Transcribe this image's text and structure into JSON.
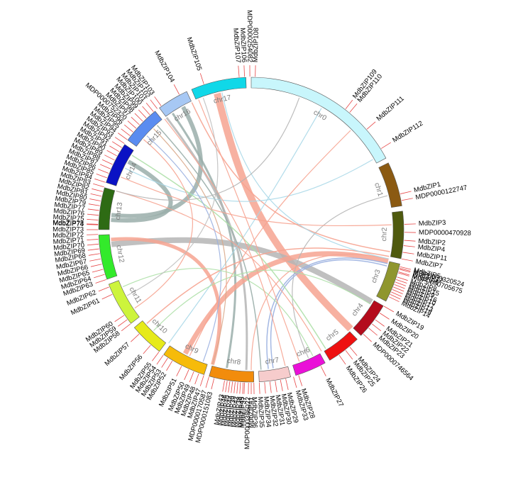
{
  "chart_data": {
    "type": "diagram",
    "chromosomes": [
      {
        "name": "chr0",
        "color": "#c8f6fc",
        "start": 0,
        "end": 62
      },
      {
        "name": "chr1",
        "color": "#8b5a12",
        "start": 64,
        "end": 81
      },
      {
        "name": "chr2",
        "color": "#4f5a0f",
        "start": 83,
        "end": 101
      },
      {
        "name": "chr3",
        "color": "#8f962e",
        "start": 103,
        "end": 118
      },
      {
        "name": "chr4",
        "color": "#b40b1c",
        "start": 120,
        "end": 134
      },
      {
        "name": "chr5",
        "color": "#ee1111",
        "start": 136,
        "end": 149
      },
      {
        "name": "chr6",
        "color": "#ea10d8",
        "start": 151,
        "end": 163
      },
      {
        "name": "chr7",
        "color": "#f6cccc",
        "start": 165,
        "end": 177
      },
      {
        "name": "chr8",
        "color": "#f28c0c",
        "start": 179,
        "end": 196
      },
      {
        "name": "chr9",
        "color": "#f6bb0a",
        "start": 198,
        "end": 215
      },
      {
        "name": "chr10",
        "color": "#e6ea1a",
        "start": 217,
        "end": 230
      },
      {
        "name": "chr11",
        "color": "#cdf43c",
        "start": 232,
        "end": 249
      },
      {
        "name": "chr12",
        "color": "#33ea2b",
        "start": 251,
        "end": 268
      },
      {
        "name": "chr13",
        "color": "#2e6b14",
        "start": 270,
        "end": 286
      },
      {
        "name": "chr14",
        "color": "#0a12c4",
        "start": 288,
        "end": 304
      },
      {
        "name": "chr15",
        "color": "#5a8cf0",
        "start": 306,
        "end": 321
      },
      {
        "name": "chr16",
        "color": "#a7c8f4",
        "start": 323,
        "end": 335
      },
      {
        "name": "chr17",
        "color": "#10d8e8",
        "start": 337,
        "end": 358
      }
    ],
    "genes": [
      {
        "name": "MdbZIP1",
        "pos": 76.5
      },
      {
        "name": "MDP0000122747",
        "pos": 79
      },
      {
        "name": "MdbZIP2",
        "pos": 94
      },
      {
        "name": "MdbZIP3",
        "pos": 88
      },
      {
        "name": "MDP0000470928",
        "pos": 91
      },
      {
        "name": "MdbZIP4",
        "pos": 96
      },
      {
        "name": "MdbZIP5",
        "pos": 104
      },
      {
        "name": "MDP0000320524",
        "pos": 104.6
      },
      {
        "name": "MdbZIP6",
        "pos": 106
      },
      {
        "name": "MDP0000705675",
        "pos": 106.4
      },
      {
        "name": "MdbZIP7",
        "pos": 101
      },
      {
        "name": "MdbZIP8",
        "pos": 108
      },
      {
        "name": "MdbZIP9",
        "pos": 110
      },
      {
        "name": "MdbZIP10",
        "pos": 112
      },
      {
        "name": "MdbZIP11",
        "pos": 98.5
      },
      {
        "name": "MdbZIP12",
        "pos": 105
      },
      {
        "name": "MdbZIP13",
        "pos": 114
      },
      {
        "name": "MdbZIP14",
        "pos": 116
      },
      {
        "name": "MdbZIP15",
        "pos": 109
      },
      {
        "name": "MdbZIP16",
        "pos": 111
      },
      {
        "name": "MdbZIP17",
        "pos": 113
      },
      {
        "name": "MdbZIP18",
        "pos": 115
      },
      {
        "name": "MdbZIP19",
        "pos": 120
      },
      {
        "name": "MdbZIP20",
        "pos": 123
      },
      {
        "name": "MdbZIP21",
        "pos": 126
      },
      {
        "name": "MdbZIP22",
        "pos": 128
      },
      {
        "name": "MdbZIP23",
        "pos": 130
      },
      {
        "name": "MDP0000746564",
        "pos": 133
      },
      {
        "name": "MdbZIP24",
        "pos": 140
      },
      {
        "name": "MdbZIP25",
        "pos": 142
      },
      {
        "name": "MdbZIP26",
        "pos": 145
      },
      {
        "name": "MdbZIP27",
        "pos": 153
      },
      {
        "name": "MdbZIP28",
        "pos": 162
      },
      {
        "name": "MdbZIP29",
        "pos": 167
      },
      {
        "name": "MdbZIP30",
        "pos": 169
      },
      {
        "name": "MdbZIP31",
        "pos": 171
      },
      {
        "name": "MdbZIP32",
        "pos": 173
      },
      {
        "name": "MdbZIP33",
        "pos": 164
      },
      {
        "name": "MdbZIP34",
        "pos": 175
      },
      {
        "name": "MdbZIP35",
        "pos": 177
      },
      {
        "name": "MdbZIP36",
        "pos": 179
      },
      {
        "name": "MDP0000386022",
        "pos": 181
      },
      {
        "name": "MdbZIP37",
        "pos": 182.5
      },
      {
        "name": "MdbZIP38",
        "pos": 184
      },
      {
        "name": "MdbZIP39",
        "pos": 186
      },
      {
        "name": "MdbZIP40",
        "pos": 188
      },
      {
        "name": "MdbZIP41",
        "pos": 180
      },
      {
        "name": "MdbZIP42",
        "pos": 185
      },
      {
        "name": "MdbZIP43",
        "pos": 190
      },
      {
        "name": "MdbZIP44",
        "pos": 187
      },
      {
        "name": "MdbZIP45",
        "pos": 183
      },
      {
        "name": "MdbZIP46",
        "pos": 189
      },
      {
        "name": "MdbZIP47",
        "pos": 198
      },
      {
        "name": "MdbZIP48",
        "pos": 200
      },
      {
        "name": "MdbZIP49",
        "pos": 202
      },
      {
        "name": "MDP0000151083",
        "pos": 194
      },
      {
        "name": "MDP0000170587",
        "pos": 196
      },
      {
        "name": "MdbZIP50",
        "pos": 204
      },
      {
        "name": "MdbZIP51",
        "pos": 207
      },
      {
        "name": "MdbZIP52",
        "pos": 211
      },
      {
        "name": "MdbZIP53",
        "pos": 213
      },
      {
        "name": "MdbZIP54",
        "pos": 215
      },
      {
        "name": "MdbZIP55",
        "pos": 217
      },
      {
        "name": "MdbZIP56",
        "pos": 221
      },
      {
        "name": "MdbZIP57",
        "pos": 227
      },
      {
        "name": "MdbZIP58",
        "pos": 232
      },
      {
        "name": "MdbZIP59",
        "pos": 234
      },
      {
        "name": "MdbZIP60",
        "pos": 236
      },
      {
        "name": "MdbZIP61",
        "pos": 245
      },
      {
        "name": "MdbZIP62",
        "pos": 248
      },
      {
        "name": "MdbZIP63",
        "pos": 251
      },
      {
        "name": "MdbZIP64",
        "pos": 253
      },
      {
        "name": "MdbZIP65",
        "pos": 255
      },
      {
        "name": "MdbZIP66",
        "pos": 257
      },
      {
        "name": "MdbZIP67",
        "pos": 259
      },
      {
        "name": "MdbZIP68",
        "pos": 261
      },
      {
        "name": "MdbZIP69",
        "pos": 262.8
      },
      {
        "name": "MdbZIP70",
        "pos": 264.6
      },
      {
        "name": "MdbZIP71",
        "pos": 266.4
      },
      {
        "name": "MdbZIP72",
        "pos": 268.2
      },
      {
        "name": "MdbZIP73",
        "pos": 270
      },
      {
        "name": "MdbZIP74",
        "pos": 271.8
      },
      {
        "name": "MdbZIP75",
        "pos": 273.6
      },
      {
        "name": "MdbZIP76",
        "pos": 275.4
      },
      {
        "name": "MdbZIP77",
        "pos": 277.2
      },
      {
        "name": "MdbZIP78",
        "pos": 272
      },
      {
        "name": "MdbZIP79",
        "pos": 279
      },
      {
        "name": "MdbZIP80",
        "pos": 280.8
      },
      {
        "name": "MdbZIP81",
        "pos": 282.6
      },
      {
        "name": "MdbZIP82",
        "pos": 284.4
      },
      {
        "name": "MdbZIP83",
        "pos": 286.2
      },
      {
        "name": "MdbZIP84",
        "pos": 288
      },
      {
        "name": "MdbZIP85",
        "pos": 289.8
      },
      {
        "name": "MdbZIP86",
        "pos": 291.6
      },
      {
        "name": "MdbZIP87",
        "pos": 293.4
      },
      {
        "name": "MdbZIP88",
        "pos": 295.2
      },
      {
        "name": "MdbZIP89",
        "pos": 297
      },
      {
        "name": "MdbZIP90",
        "pos": 298.8
      },
      {
        "name": "MdbZIP91",
        "pos": 300.6
      },
      {
        "name": "MdbZIP92",
        "pos": 302.4
      },
      {
        "name": "MdbZIP93",
        "pos": 304.2
      },
      {
        "name": "MdbZIP94",
        "pos": 306
      },
      {
        "name": "MdbZIP95",
        "pos": 307.8
      },
      {
        "name": "MdbZIP96",
        "pos": 309.6
      },
      {
        "name": "MDP0000752320",
        "pos": 311.4
      },
      {
        "name": "MdbZIP97",
        "pos": 313.2
      },
      {
        "name": "MdbZIP98",
        "pos": 315
      },
      {
        "name": "MdbZIP99",
        "pos": 316.8
      },
      {
        "name": "MdbZIP100",
        "pos": 318.6
      },
      {
        "name": "MdbZIP101",
        "pos": 320.4
      },
      {
        "name": "MdbZIP102",
        "pos": 322.2
      },
      {
        "name": "MdbZIP103",
        "pos": 324
      },
      {
        "name": "MdbZIP104",
        "pos": 332
      },
      {
        "name": "MdbZIP105",
        "pos": 342
      },
      {
        "name": "MdbZIP106",
        "pos": 357.5
      },
      {
        "name": "MdbZIP107",
        "pos": 355.5
      },
      {
        "name": "MDP0000254082",
        "pos": 359.5
      },
      {
        "name": "MdbZIP108",
        "pos": 1.5
      },
      {
        "name": "MdbZIP109",
        "pos": 38
      },
      {
        "name": "MdbZIP110",
        "pos": 40
      },
      {
        "name": "MdbZIP111",
        "pos": 49
      },
      {
        "name": "MdbZIP112",
        "pos": 58
      }
    ],
    "links": [
      {
        "from": 346,
        "to": 135,
        "color": "#f6a390",
        "width": 10
      },
      {
        "from": 264,
        "to": 121,
        "color": "#b5b5b5",
        "width": 8
      },
      {
        "from": 266,
        "to": 196,
        "color": "#f6a390",
        "width": 5
      },
      {
        "from": 274,
        "to": 299,
        "color": "#9aaeaa",
        "width": 6
      },
      {
        "from": 276,
        "to": 331,
        "color": "#9aaeaa",
        "width": 6
      },
      {
        "from": 326,
        "to": 190,
        "color": "#9aaeaa",
        "width": 3
      },
      {
        "from": 323,
        "to": 182,
        "color": "#b5b5b5",
        "width": 3
      },
      {
        "from": 208,
        "to": 103,
        "color": "#f6a390",
        "width": 7
      },
      {
        "from": 228,
        "to": 101,
        "color": "#f6a390",
        "width": 1.5
      },
      {
        "from": 318,
        "to": 176,
        "color": "#9aaeaa",
        "width": 1.5
      },
      {
        "from": 335,
        "to": 99,
        "color": "#f6a390",
        "width": 1.5
      },
      {
        "from": 30,
        "to": 216,
        "color": "#aad8e8",
        "width": 1.2
      },
      {
        "from": 296,
        "to": 60,
        "color": "#aad8e8",
        "width": 1.2
      },
      {
        "from": 316,
        "to": 196,
        "color": "#d9a88a",
        "width": 1.2
      },
      {
        "from": 156,
        "to": 76,
        "color": "#b5b5b5",
        "width": 1.2
      },
      {
        "from": 171,
        "to": 105,
        "color": "#9ab0e0",
        "width": 1.5
      },
      {
        "from": 173,
        "to": 104,
        "color": "#9ab0e0",
        "width": 1.5
      },
      {
        "from": 180,
        "to": 102,
        "color": "#f6a390",
        "width": 1.2
      },
      {
        "from": 302,
        "to": 148,
        "color": "#aee0a8",
        "width": 1.5
      },
      {
        "from": 292,
        "to": 88,
        "color": "#f6a390",
        "width": 1.2
      },
      {
        "from": 286,
        "to": 150,
        "color": "#f6a390",
        "width": 1.2
      },
      {
        "from": 236,
        "to": 310,
        "color": "#f6a390",
        "width": 1.2
      },
      {
        "from": 224,
        "to": 122,
        "color": "#aee0a8",
        "width": 1.2
      },
      {
        "from": 206,
        "to": 45,
        "color": "#f6a390",
        "width": 1.2
      },
      {
        "from": 200,
        "to": 312,
        "color": "#9ab0e0",
        "width": 1.2
      },
      {
        "from": 246,
        "to": 154,
        "color": "#aee0a8",
        "width": 1.2
      },
      {
        "from": 322,
        "to": 166,
        "color": "#f6a390",
        "width": 1.2
      },
      {
        "from": 338,
        "to": 160,
        "color": "#f6a390",
        "width": 1.2
      },
      {
        "from": 348,
        "to": 102,
        "color": "#aad8e8",
        "width": 1.2
      },
      {
        "from": 340,
        "to": 242,
        "color": "#c0c0c0",
        "width": 1.2
      },
      {
        "from": 286,
        "to": 20,
        "color": "#b5b5b5",
        "width": 1.2
      }
    ]
  }
}
